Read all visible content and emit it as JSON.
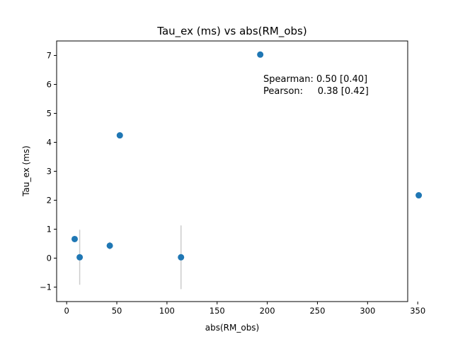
{
  "chart_data": {
    "type": "scatter",
    "title": "Tau_ex (ms) vs abs(RM_obs)",
    "xlabel": "abs(RM_obs)",
    "ylabel": "Tau_ex (ms)",
    "xlim": [
      -10,
      340
    ],
    "ylim": [
      -1.5,
      7.5
    ],
    "xticks": [
      0,
      50,
      100,
      150,
      200,
      250,
      300,
      350
    ],
    "yticks": [
      -1,
      0,
      1,
      2,
      3,
      4,
      5,
      6,
      7
    ],
    "xtick_labels": [
      "0",
      "50",
      "100",
      "150",
      "200",
      "250",
      "300",
      "350"
    ],
    "ytick_labels": [
      "−1",
      "0",
      "1",
      "2",
      "3",
      "4",
      "5",
      "6",
      "7"
    ],
    "grid": false,
    "marker_color": "#1f77b4",
    "errorbar_color": "#cccccc",
    "points": [
      {
        "x": 8,
        "y": 0.66,
        "yerr": 0
      },
      {
        "x": 13,
        "y": 0.03,
        "yerr": 0.95
      },
      {
        "x": 43,
        "y": 0.43,
        "yerr": 0.13
      },
      {
        "x": 53,
        "y": 4.24,
        "yerr": 0
      },
      {
        "x": 114,
        "y": 0.03,
        "yerr": 1.1
      },
      {
        "x": 193,
        "y": 7.03,
        "yerr": 0
      },
      {
        "x": 351,
        "y": 2.17,
        "yerr": 0
      }
    ],
    "annotations": [
      "Spearman: 0.50 [0.40]",
      "Pearson:     0.38 [0.42]"
    ]
  }
}
